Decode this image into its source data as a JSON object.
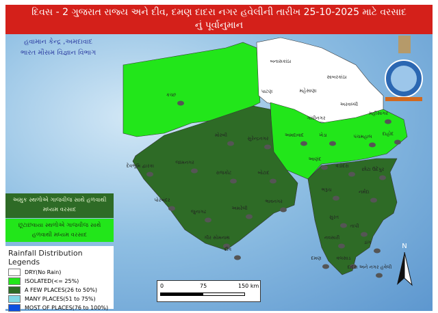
{
  "title": {
    "line1": "દિવસ - 2 ગુજરાત રાજ્ય અને દીવ, દમણ દાદરા નગર હવેલીની તારીખ 25-10-2025 માટે વરસાદ",
    "line2": "નું પૂર્વાનુમાન"
  },
  "agency": {
    "line1": "હવામાન કેન્દ્ર ,અમદાવાદ",
    "line2": "ભારત મૌસમ વિજ્ઞાન વિભાગ",
    "logo": "IMD emblem"
  },
  "forecast_boxes": [
    {
      "text": "અમુક સ્થળોએ ગાજવીજ સાથે હળવાથી મધ્યમ વરસાદ",
      "color": "#2e6b26"
    },
    {
      "text": "છૂટાછવાયા સ્થળોએ ગાજવીજ સાથે હળવાથી મધ્યમ વરસાદ",
      "color": "#22e61a"
    }
  ],
  "legend": {
    "title": "Rainfall Distribution Legends",
    "items": [
      {
        "label": "DRY(No Rain)",
        "color": "#ffffff"
      },
      {
        "label": "ISOLATED(<= 25%)",
        "color": "#22e61a"
      },
      {
        "label": "A FEW PLACES(26 to 50%)",
        "color": "#2e6b26"
      },
      {
        "label": "MANY PLACES(51 to 75%)",
        "color": "#7fd8e6"
      },
      {
        "label": "MOST OF PLACES(76 to 100%)",
        "color": "#0a4fe0"
      }
    ]
  },
  "scale": {
    "labels": [
      "0",
      "75",
      "150 km"
    ]
  },
  "north": "N",
  "districts": [
    {
      "name": "કચ્છ",
      "category": "ISOLATED",
      "thunder": true
    },
    {
      "name": "બનાસકાંઠા",
      "category": "DRY",
      "thunder": false
    },
    {
      "name": "પાટણ",
      "category": "DRY",
      "thunder": false
    },
    {
      "name": "મહેસાણા",
      "category": "DRY",
      "thunder": false
    },
    {
      "name": "સાબરકાંઠા",
      "category": "DRY",
      "thunder": false
    },
    {
      "name": "અરવલ્લી",
      "category": "DRY",
      "thunder": false
    },
    {
      "name": "ગાંધીનગર",
      "category": "DRY",
      "thunder": false
    },
    {
      "name": "મહીસાગર",
      "category": "ISOLATED",
      "thunder": true
    },
    {
      "name": "અમદાવાદ",
      "category": "ISOLATED",
      "thunder": true
    },
    {
      "name": "ખેડા",
      "category": "ISOLATED",
      "thunder": true
    },
    {
      "name": "પંચમહાલ",
      "category": "ISOLATED",
      "thunder": true
    },
    {
      "name": "દાહોદ",
      "category": "ISOLATED",
      "thunder": true
    },
    {
      "name": "આણંદ",
      "category": "ISOLATED",
      "thunder": true
    },
    {
      "name": "મોરબી",
      "category": "A FEW PLACES",
      "thunder": true
    },
    {
      "name": "સુરેન્દ્રનગર",
      "category": "A FEW PLACES",
      "thunder": true
    },
    {
      "name": "જામનગર",
      "category": "A FEW PLACES",
      "thunder": true
    },
    {
      "name": "દેવભૂમિ દ્વારકા",
      "category": "A FEW PLACES",
      "thunder": true
    },
    {
      "name": "રાજકોટ",
      "category": "A FEW PLACES",
      "thunder": true
    },
    {
      "name": "બોટાદ",
      "category": "A FEW PLACES",
      "thunder": true
    },
    {
      "name": "પોરબંદર",
      "category": "A FEW PLACES",
      "thunder": true
    },
    {
      "name": "જુનાગઢ",
      "category": "A FEW PLACES",
      "thunder": true
    },
    {
      "name": "અમરેલી",
      "category": "A FEW PLACES",
      "thunder": true
    },
    {
      "name": "ભાવનગર",
      "category": "A FEW PLACES",
      "thunder": true
    },
    {
      "name": "ગીર સોમનાથ",
      "category": "A FEW PLACES",
      "thunder": true
    },
    {
      "name": "દીવ",
      "category": "A FEW PLACES",
      "thunder": true
    },
    {
      "name": "વડોદરા",
      "category": "A FEW PLACES",
      "thunder": true
    },
    {
      "name": "છોટા ઉદેપુર",
      "category": "A FEW PLACES",
      "thunder": true
    },
    {
      "name": "ભરૂચ",
      "category": "A FEW PLACES",
      "thunder": true
    },
    {
      "name": "નર્મદા",
      "category": "A FEW PLACES",
      "thunder": true
    },
    {
      "name": "સુરત",
      "category": "A FEW PLACES",
      "thunder": true
    },
    {
      "name": "તાપી",
      "category": "A FEW PLACES",
      "thunder": true
    },
    {
      "name": "નવસારી",
      "category": "A FEW PLACES",
      "thunder": true
    },
    {
      "name": "ડાંગ",
      "category": "A FEW PLACES",
      "thunder": true
    },
    {
      "name": "વલસાડ",
      "category": "A FEW PLACES",
      "thunder": true
    },
    {
      "name": "દમણ",
      "category": "A FEW PLACES",
      "thunder": true
    },
    {
      "name": "દાદરા અને નગર હવેલી",
      "category": "A FEW PLACES",
      "thunder": true
    }
  ]
}
